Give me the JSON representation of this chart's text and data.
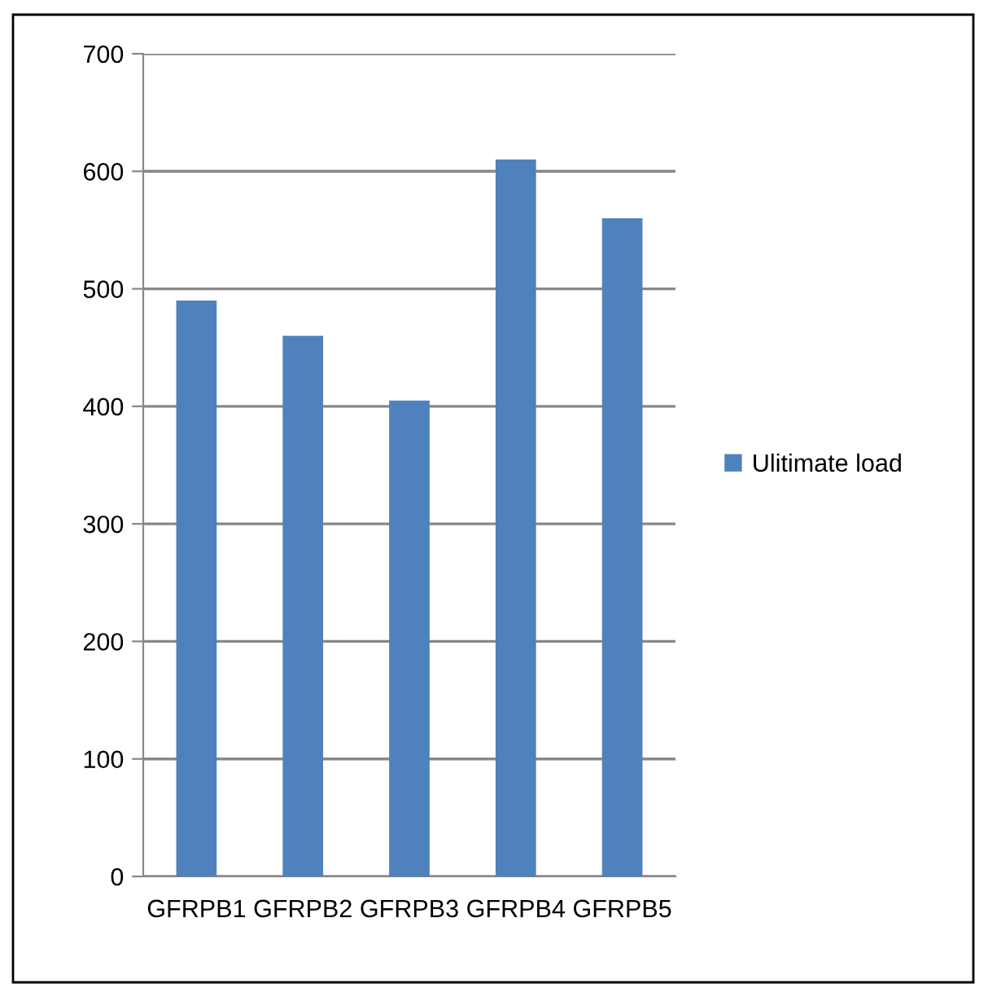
{
  "chart_data": {
    "type": "bar",
    "categories": [
      "GFRPB1",
      "GFRPB2",
      "GFRPB3",
      "GFRPB4",
      "GFRPB5"
    ],
    "series": [
      {
        "name": "Ulitimate load",
        "color": "#4f81bd",
        "values": [
          490,
          460,
          405,
          610,
          560
        ]
      }
    ],
    "ylim": [
      0,
      700
    ],
    "yticks": [
      0,
      100,
      200,
      300,
      400,
      500,
      600,
      700
    ],
    "grid": "y",
    "legend": "right"
  }
}
